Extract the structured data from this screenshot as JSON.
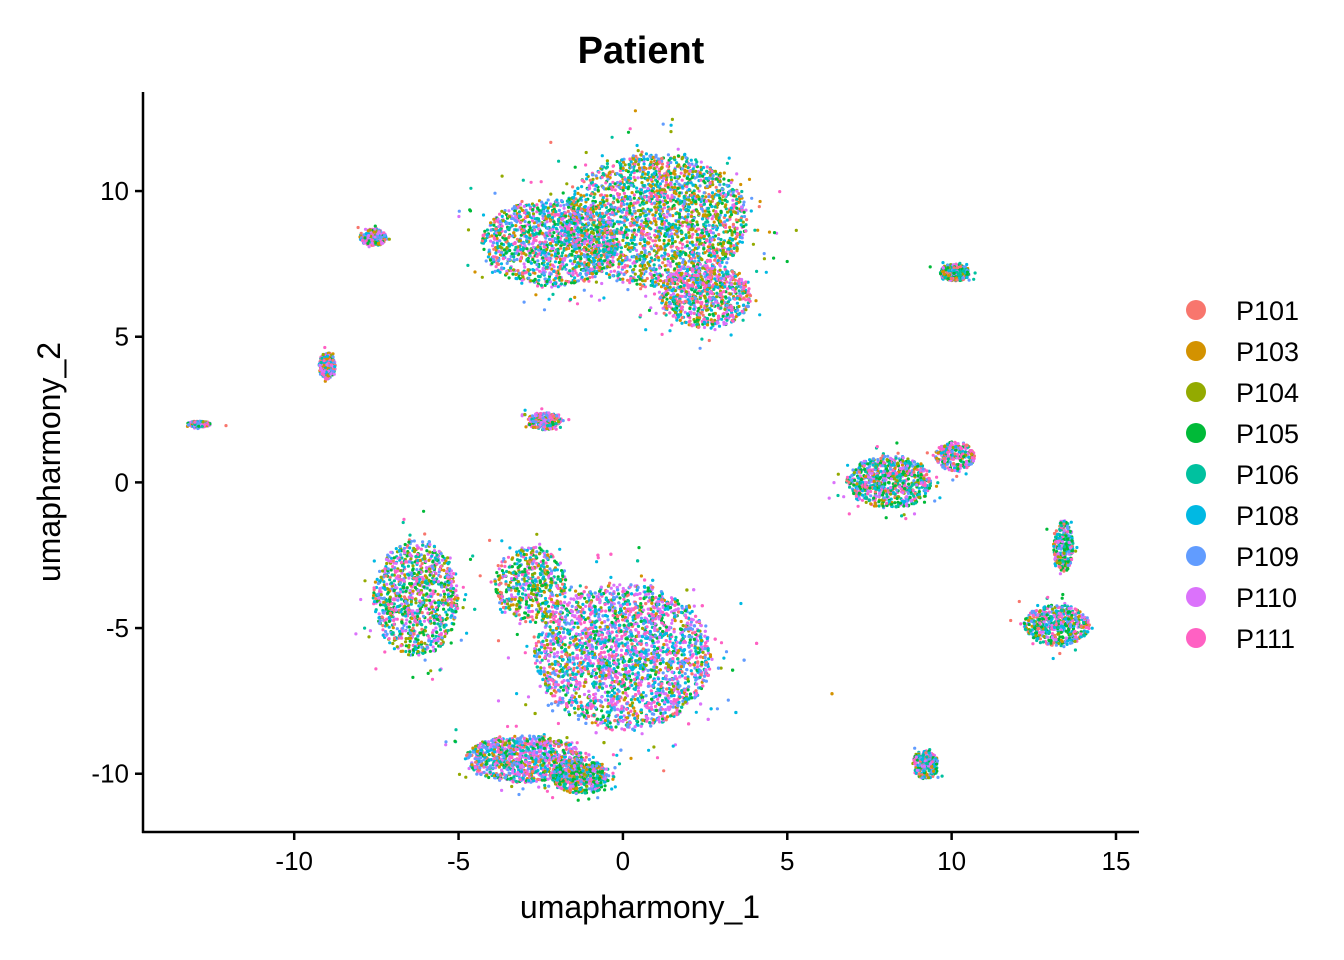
{
  "chart_data": {
    "type": "scatter",
    "title": "Patient",
    "xlabel": "umapharmony_1",
    "ylabel": "umapharmony_2",
    "xlim": [
      -14.6,
      15.7
    ],
    "ylim": [
      -12.0,
      13.4
    ],
    "x_ticks": [
      -10,
      -5,
      0,
      5,
      10,
      15
    ],
    "y_ticks": [
      -10,
      -5,
      0,
      5,
      10
    ],
    "x_tick_labels": [
      "-10",
      "-5",
      "0",
      "5",
      "10",
      "15"
    ],
    "y_tick_labels": [
      "-10",
      "-5",
      "0",
      "5",
      "10"
    ],
    "grid": false,
    "legend_position": "right",
    "series": [
      {
        "name": "P101",
        "color": "#F8766D"
      },
      {
        "name": "P103",
        "color": "#D39200"
      },
      {
        "name": "P104",
        "color": "#93AA00"
      },
      {
        "name": "P105",
        "color": "#00BA38"
      },
      {
        "name": "P106",
        "color": "#00C19F"
      },
      {
        "name": "P108",
        "color": "#00B9E3"
      },
      {
        "name": "P109",
        "color": "#619CFF"
      },
      {
        "name": "P110",
        "color": "#DB72FB"
      },
      {
        "name": "P111",
        "color": "#FF61C3"
      }
    ],
    "clusters": [
      {
        "cx": 1.0,
        "cy": 9.0,
        "rx": 2.8,
        "ry": 2.3,
        "weight": 9,
        "mix": [
          1,
          2,
          2,
          2,
          2,
          2,
          2,
          1,
          2
        ]
      },
      {
        "cx": -2.2,
        "cy": 8.2,
        "rx": 2.1,
        "ry": 1.5,
        "weight": 5,
        "mix": [
          1,
          1,
          1,
          2,
          2,
          2,
          2,
          2,
          2
        ]
      },
      {
        "cx": 2.5,
        "cy": 6.4,
        "rx": 1.4,
        "ry": 1.1,
        "weight": 3,
        "mix": [
          1,
          1,
          1,
          1,
          1,
          2,
          1,
          2,
          3
        ]
      },
      {
        "cx": -7.6,
        "cy": 8.4,
        "rx": 0.4,
        "ry": 0.3,
        "weight": 1,
        "mix": [
          1,
          1,
          1,
          1,
          1,
          1,
          2,
          3,
          3
        ]
      },
      {
        "cx": 10.1,
        "cy": 7.2,
        "rx": 0.45,
        "ry": 0.3,
        "weight": 1,
        "mix": [
          1,
          1,
          1,
          3,
          2,
          2,
          2,
          2,
          1
        ]
      },
      {
        "cx": -9.0,
        "cy": 4.0,
        "rx": 0.25,
        "ry": 0.45,
        "weight": 1,
        "mix": [
          1,
          1,
          1,
          1,
          1,
          2,
          2,
          3,
          2
        ]
      },
      {
        "cx": -12.9,
        "cy": 2.0,
        "rx": 0.35,
        "ry": 0.1,
        "weight": 1,
        "mix": [
          1,
          1,
          1,
          1,
          1,
          2,
          2,
          3,
          2
        ]
      },
      {
        "cx": -2.4,
        "cy": 2.1,
        "rx": 0.5,
        "ry": 0.3,
        "weight": 1,
        "mix": [
          1,
          1,
          1,
          1,
          1,
          1,
          2,
          3,
          3
        ]
      },
      {
        "cx": 8.1,
        "cy": 0.0,
        "rx": 1.3,
        "ry": 0.9,
        "weight": 3,
        "mix": [
          1,
          1,
          1,
          3,
          2,
          2,
          2,
          2,
          3
        ]
      },
      {
        "cx": 10.1,
        "cy": 0.9,
        "rx": 0.6,
        "ry": 0.5,
        "weight": 1,
        "mix": [
          1,
          1,
          1,
          2,
          1,
          1,
          2,
          2,
          4
        ]
      },
      {
        "cx": 0.0,
        "cy": -6.0,
        "rx": 2.7,
        "ry": 2.5,
        "weight": 14,
        "mix": [
          1,
          1,
          1,
          2,
          2,
          3,
          3,
          4,
          4
        ]
      },
      {
        "cx": -6.3,
        "cy": -4.0,
        "rx": 1.3,
        "ry": 2.0,
        "weight": 4,
        "mix": [
          1,
          1,
          2,
          3,
          2,
          2,
          2,
          3,
          3
        ]
      },
      {
        "cx": -2.8,
        "cy": -3.5,
        "rx": 1.1,
        "ry": 1.3,
        "weight": 2,
        "mix": [
          1,
          2,
          2,
          3,
          2,
          2,
          2,
          2,
          2
        ]
      },
      {
        "cx": -3.0,
        "cy": -9.5,
        "rx": 1.8,
        "ry": 0.8,
        "weight": 4,
        "mix": [
          1,
          1,
          1,
          2,
          2,
          2,
          3,
          3,
          3
        ]
      },
      {
        "cx": -1.3,
        "cy": -10.1,
        "rx": 0.9,
        "ry": 0.6,
        "weight": 2,
        "mix": [
          1,
          1,
          1,
          3,
          2,
          2,
          2,
          2,
          2
        ]
      },
      {
        "cx": 13.2,
        "cy": -4.9,
        "rx": 1.0,
        "ry": 0.7,
        "weight": 2,
        "mix": [
          1,
          1,
          1,
          3,
          2,
          2,
          2,
          2,
          2
        ]
      },
      {
        "cx": 13.4,
        "cy": -2.2,
        "rx": 0.3,
        "ry": 0.9,
        "weight": 1,
        "mix": [
          1,
          1,
          1,
          3,
          2,
          2,
          2,
          2,
          2
        ]
      },
      {
        "cx": 9.2,
        "cy": -9.7,
        "rx": 0.4,
        "ry": 0.5,
        "weight": 1,
        "mix": [
          1,
          1,
          1,
          3,
          2,
          2,
          2,
          2,
          2
        ]
      }
    ]
  }
}
